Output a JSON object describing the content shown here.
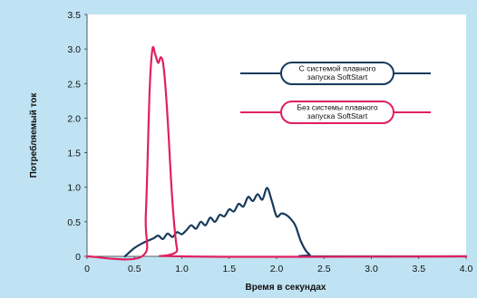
{
  "colors": {
    "background": "#bfe3f3",
    "plot_area": "#ffffff",
    "series_softstart": "#163a5c",
    "series_no_softstart": "#e0205e"
  },
  "chart_data": {
    "type": "line",
    "title": "",
    "xlabel": "Время в секундах",
    "ylabel": "Потребляемый ток",
    "xlim": [
      0,
      4.0
    ],
    "ylim": [
      0,
      3.5
    ],
    "x_ticks": [
      0,
      0.5,
      1.0,
      1.5,
      2.0,
      2.5,
      3.0,
      3.5,
      4.0
    ],
    "x_tick_labels": [
      "0",
      "0.5",
      "1.0",
      "1.5",
      "2.0",
      "2.5",
      "3.0",
      "3.5",
      "4.0"
    ],
    "y_ticks": [
      0,
      0.5,
      1.0,
      1.5,
      2.0,
      2.5,
      3.0,
      3.5
    ],
    "y_tick_labels": [
      "0",
      "0.5",
      "1.0",
      "1.5",
      "2.0",
      "2.5",
      "3.0",
      "3.5"
    ],
    "grid": false,
    "legend_position": "top-right",
    "series": [
      {
        "name": "С системой плавного запуска SoftStart",
        "legend_lines": [
          "С системой плавного",
          "запуска SoftStart"
        ],
        "color": "#163a5c",
        "points": [
          [
            0.4,
            0.0
          ],
          [
            0.5,
            0.12
          ],
          [
            0.6,
            0.2
          ],
          [
            0.7,
            0.26
          ],
          [
            0.75,
            0.3
          ],
          [
            0.8,
            0.25
          ],
          [
            0.85,
            0.33
          ],
          [
            0.9,
            0.28
          ],
          [
            0.95,
            0.35
          ],
          [
            1.0,
            0.32
          ],
          [
            1.05,
            0.38
          ],
          [
            1.1,
            0.45
          ],
          [
            1.15,
            0.4
          ],
          [
            1.2,
            0.5
          ],
          [
            1.25,
            0.45
          ],
          [
            1.3,
            0.56
          ],
          [
            1.35,
            0.5
          ],
          [
            1.4,
            0.6
          ],
          [
            1.45,
            0.58
          ],
          [
            1.5,
            0.68
          ],
          [
            1.55,
            0.65
          ],
          [
            1.6,
            0.76
          ],
          [
            1.65,
            0.72
          ],
          [
            1.7,
            0.86
          ],
          [
            1.75,
            0.8
          ],
          [
            1.8,
            0.9
          ],
          [
            1.85,
            0.82
          ],
          [
            1.9,
            0.99
          ],
          [
            1.95,
            0.8
          ],
          [
            2.0,
            0.58
          ],
          [
            2.05,
            0.62
          ],
          [
            2.1,
            0.6
          ],
          [
            2.15,
            0.54
          ],
          [
            2.2,
            0.44
          ],
          [
            2.25,
            0.24
          ],
          [
            2.3,
            0.1
          ],
          [
            2.35,
            0.02
          ],
          [
            2.36,
            0.0
          ],
          [
            4.0,
            0.0
          ]
        ]
      },
      {
        "name": "Без системы плавного запуска SoftStart",
        "legend_lines": [
          "Без системы плавного",
          "запуска SoftStart"
        ],
        "color": "#e0205e",
        "points": [
          [
            0.0,
            0.0
          ],
          [
            0.58,
            0.0
          ],
          [
            0.62,
            0.6
          ],
          [
            0.66,
            2.4
          ],
          [
            0.69,
            3.0
          ],
          [
            0.72,
            2.92
          ],
          [
            0.75,
            2.8
          ],
          [
            0.78,
            2.88
          ],
          [
            0.81,
            2.72
          ],
          [
            0.85,
            2.0
          ],
          [
            0.9,
            0.8
          ],
          [
            0.95,
            0.1
          ],
          [
            1.0,
            0.0
          ],
          [
            4.0,
            0.0
          ]
        ]
      }
    ]
  }
}
